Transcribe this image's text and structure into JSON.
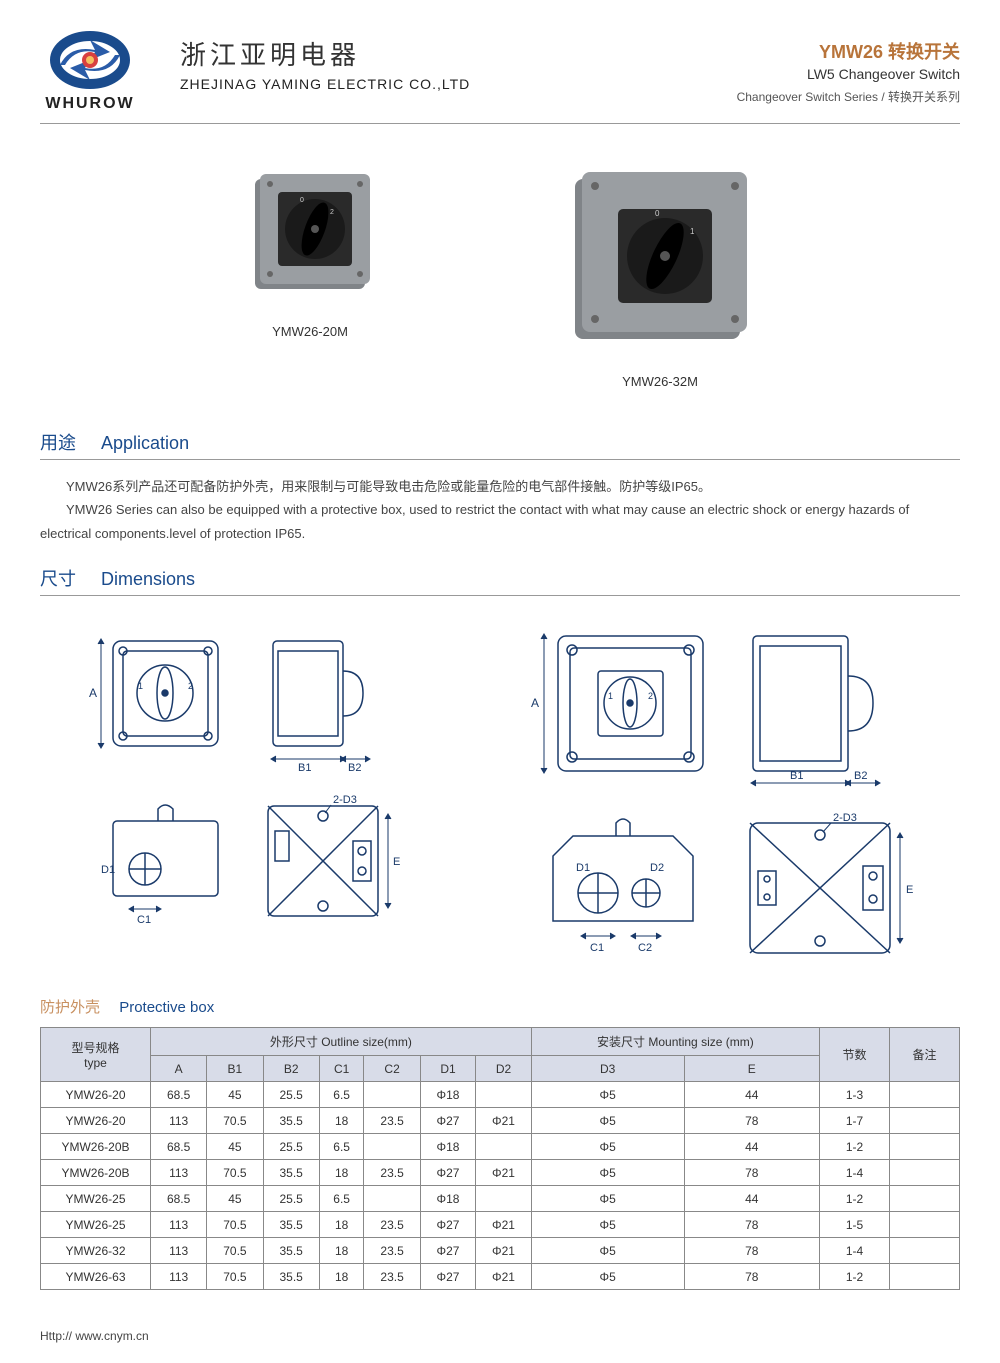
{
  "header": {
    "logo_text": "WHUROW",
    "company_cn": "浙江亚明电器",
    "company_en": "ZHEJINAG YAMING ELECTRIC CO.,LTD",
    "prod_code": "YMW26 转换开关",
    "prod_sub": "LW5 Changeover Switch",
    "prod_series": "Changeover Switch Series / 转换开关系列"
  },
  "products": {
    "p1": "YMW26-20M",
    "p2": "YMW26-32M"
  },
  "sections": {
    "app_cn": "用途",
    "app_en": "Application",
    "dim_cn": "尺寸",
    "dim_en": "Dimensions",
    "box_cn": "防护外壳",
    "box_en": "Protective box"
  },
  "application": {
    "line1": "YMW26系列产品还可配备防护外壳，用来限制与可能导致电击危险或能量危险的电气部件接触。防护等级IP65。",
    "line2": "YMW26 Series can also be equipped with a protective box, used to restrict the contact with  what may cause an electric shock or energy hazards of electrical components.level of protection IP65."
  },
  "diagram_labels": {
    "A": "A",
    "B1": "B1",
    "B2": "B2",
    "C1": "C1",
    "C2": "C2",
    "D1": "D1",
    "D2": "D2",
    "D3": "2-D3",
    "E": "E"
  },
  "table": {
    "headers": {
      "type_cn": "型号规格",
      "type_en": "type",
      "outline": "外形尺寸 Outline size(mm)",
      "mounting": "安装尺寸 Mounting size (mm)",
      "sections": "节数",
      "remark": "备注",
      "cols": [
        "A",
        "B1",
        "B2",
        "C1",
        "C2",
        "D1",
        "D2",
        "D3",
        "E"
      ]
    },
    "rows": [
      [
        "YMW26-20",
        "68.5",
        "45",
        "25.5",
        "6.5",
        "",
        "Φ18",
        "",
        "Φ5",
        "44",
        "1-3",
        ""
      ],
      [
        "YMW26-20",
        "113",
        "70.5",
        "35.5",
        "18",
        "23.5",
        "Φ27",
        "Φ21",
        "Φ5",
        "78",
        "1-7",
        ""
      ],
      [
        "YMW26-20B",
        "68.5",
        "45",
        "25.5",
        "6.5",
        "",
        "Φ18",
        "",
        "Φ5",
        "44",
        "1-2",
        ""
      ],
      [
        "YMW26-20B",
        "113",
        "70.5",
        "35.5",
        "18",
        "23.5",
        "Φ27",
        "Φ21",
        "Φ5",
        "78",
        "1-4",
        ""
      ],
      [
        "YMW26-25",
        "68.5",
        "45",
        "25.5",
        "6.5",
        "",
        "Φ18",
        "",
        "Φ5",
        "44",
        "1-2",
        ""
      ],
      [
        "YMW26-25",
        "113",
        "70.5",
        "35.5",
        "18",
        "23.5",
        "Φ27",
        "Φ21",
        "Φ5",
        "78",
        "1-5",
        ""
      ],
      [
        "YMW26-32",
        "113",
        "70.5",
        "35.5",
        "18",
        "23.5",
        "Φ27",
        "Φ21",
        "Φ5",
        "78",
        "1-4",
        ""
      ],
      [
        "YMW26-63",
        "113",
        "70.5",
        "35.5",
        "18",
        "23.5",
        "Φ27",
        "Φ21",
        "Φ5",
        "78",
        "1-2",
        ""
      ]
    ]
  },
  "footer": "Http:// www.cnym.cn",
  "colors": {
    "brand_blue": "#1a4b8c",
    "brand_orange": "#b8743a",
    "table_header_bg": "#d8dce8",
    "border": "#888888"
  }
}
